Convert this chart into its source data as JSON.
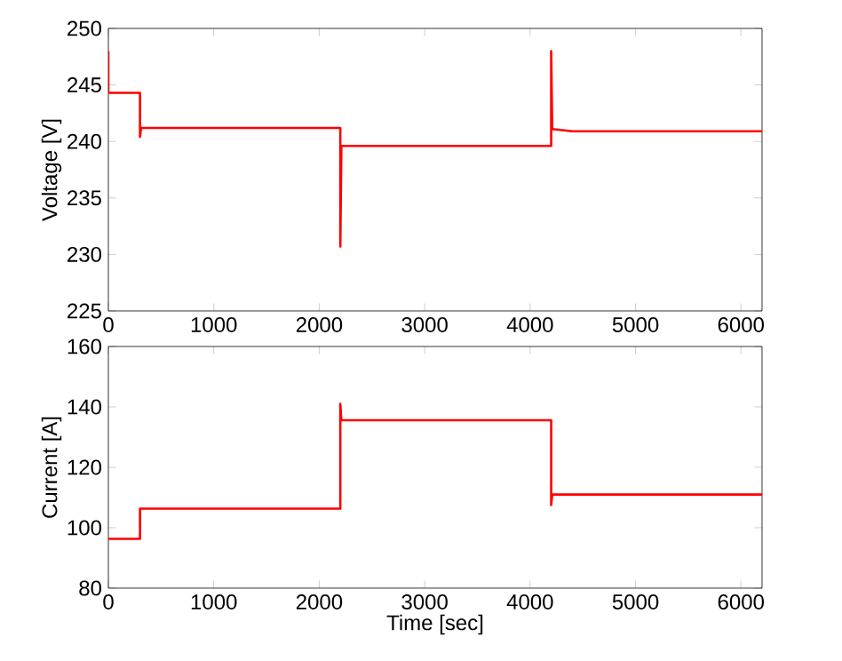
{
  "chart_data": [
    {
      "type": "line",
      "ylabel": "Voltage [V]",
      "xlim": [
        0,
        6200
      ],
      "xticks": [
        0,
        1000,
        2000,
        3000,
        4000,
        5000,
        6000
      ],
      "ylim": [
        225,
        250
      ],
      "yticks": [
        225,
        230,
        235,
        240,
        245,
        250
      ],
      "series": [
        {
          "color": "#ff0000",
          "x": [
            0,
            0,
            300,
            300,
            310,
            2200,
            2200,
            2210,
            4200,
            4200,
            4210,
            4400,
            6200
          ],
          "values": [
            248,
            244.3,
            244.3,
            240.4,
            241.2,
            241.2,
            230.7,
            239.6,
            239.6,
            248,
            241.1,
            240.9,
            240.9
          ]
        }
      ]
    },
    {
      "type": "line",
      "xlabel": "Time [sec]",
      "ylabel": "Current [A]",
      "xlim": [
        0,
        6200
      ],
      "xticks": [
        0,
        1000,
        2000,
        3000,
        4000,
        5000,
        6000
      ],
      "ylim": [
        80,
        160
      ],
      "yticks": [
        80,
        100,
        120,
        140,
        160
      ],
      "series": [
        {
          "color": "#ff0000",
          "x": [
            0,
            300,
            300,
            2200,
            2200,
            2210,
            4200,
            4200,
            4210,
            6200
          ],
          "values": [
            96.3,
            96.3,
            106.3,
            106.3,
            141,
            135.6,
            135.6,
            107.5,
            111,
            111
          ]
        }
      ]
    }
  ]
}
